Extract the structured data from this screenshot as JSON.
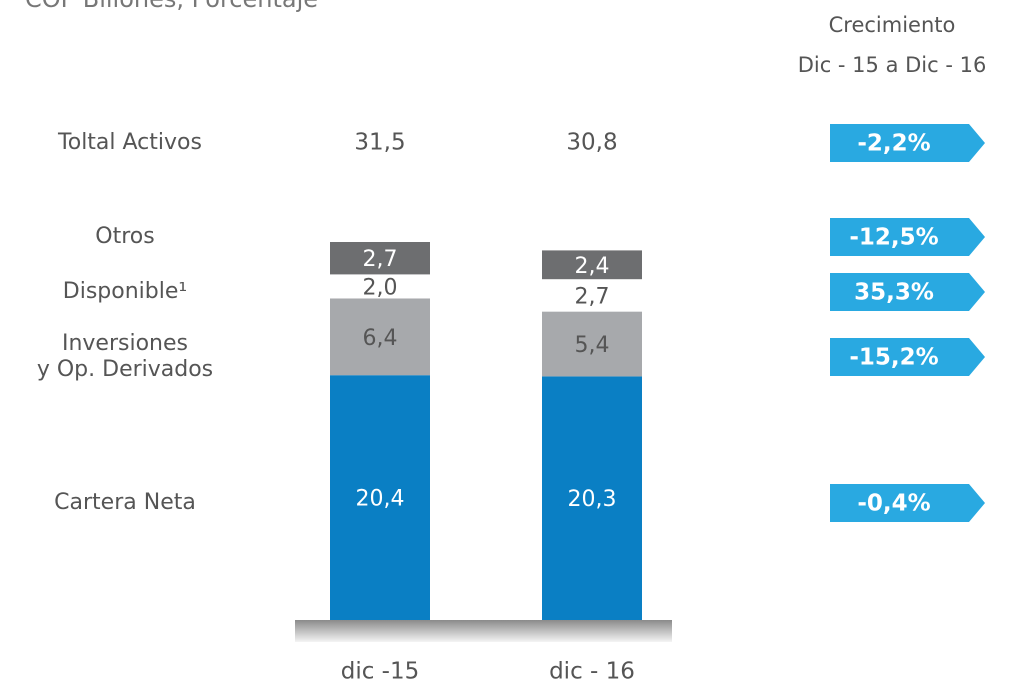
{
  "chart_data": {
    "type": "bar",
    "stacked": true,
    "title": "COP Billones, Porcentaje",
    "growth_title": "Crecimiento",
    "growth_subtitle": "Dic - 15 a Dic - 16",
    "categories": [
      "dic -15",
      "dic - 16"
    ],
    "total_name": "Toltal Activos",
    "totals": [
      31.5,
      30.8
    ],
    "total_labels": [
      "31,5",
      "30,8"
    ],
    "total_growth": -2.2,
    "total_growth_label": "-2,2%",
    "growth_color": "#29a9e1",
    "series": [
      {
        "name": "Cartera Neta",
        "color": "#0a7fc4",
        "values": [
          20.4,
          20.3
        ],
        "value_labels": [
          "20,4",
          "20,3"
        ],
        "growth": -0.4,
        "growth_label": "-0,4%"
      },
      {
        "name": "Inversiones\ny Op. Derivados",
        "color": "#a7a9ac",
        "values": [
          6.4,
          5.4
        ],
        "value_labels": [
          "6,4",
          "5,4"
        ],
        "growth": -15.2,
        "growth_label": "-15,2%"
      },
      {
        "name": "Disponible¹",
        "color": "#ffffff",
        "values": [
          2.0,
          2.7
        ],
        "value_labels": [
          "2,0",
          "2,7"
        ],
        "growth": 35.3,
        "growth_label": "35,3%"
      },
      {
        "name": "Otros",
        "color": "#6d6e70",
        "values": [
          2.7,
          2.4
        ],
        "value_labels": [
          "2,7",
          "2,4"
        ],
        "growth": -12.5,
        "growth_label": "-12,5%"
      }
    ]
  }
}
